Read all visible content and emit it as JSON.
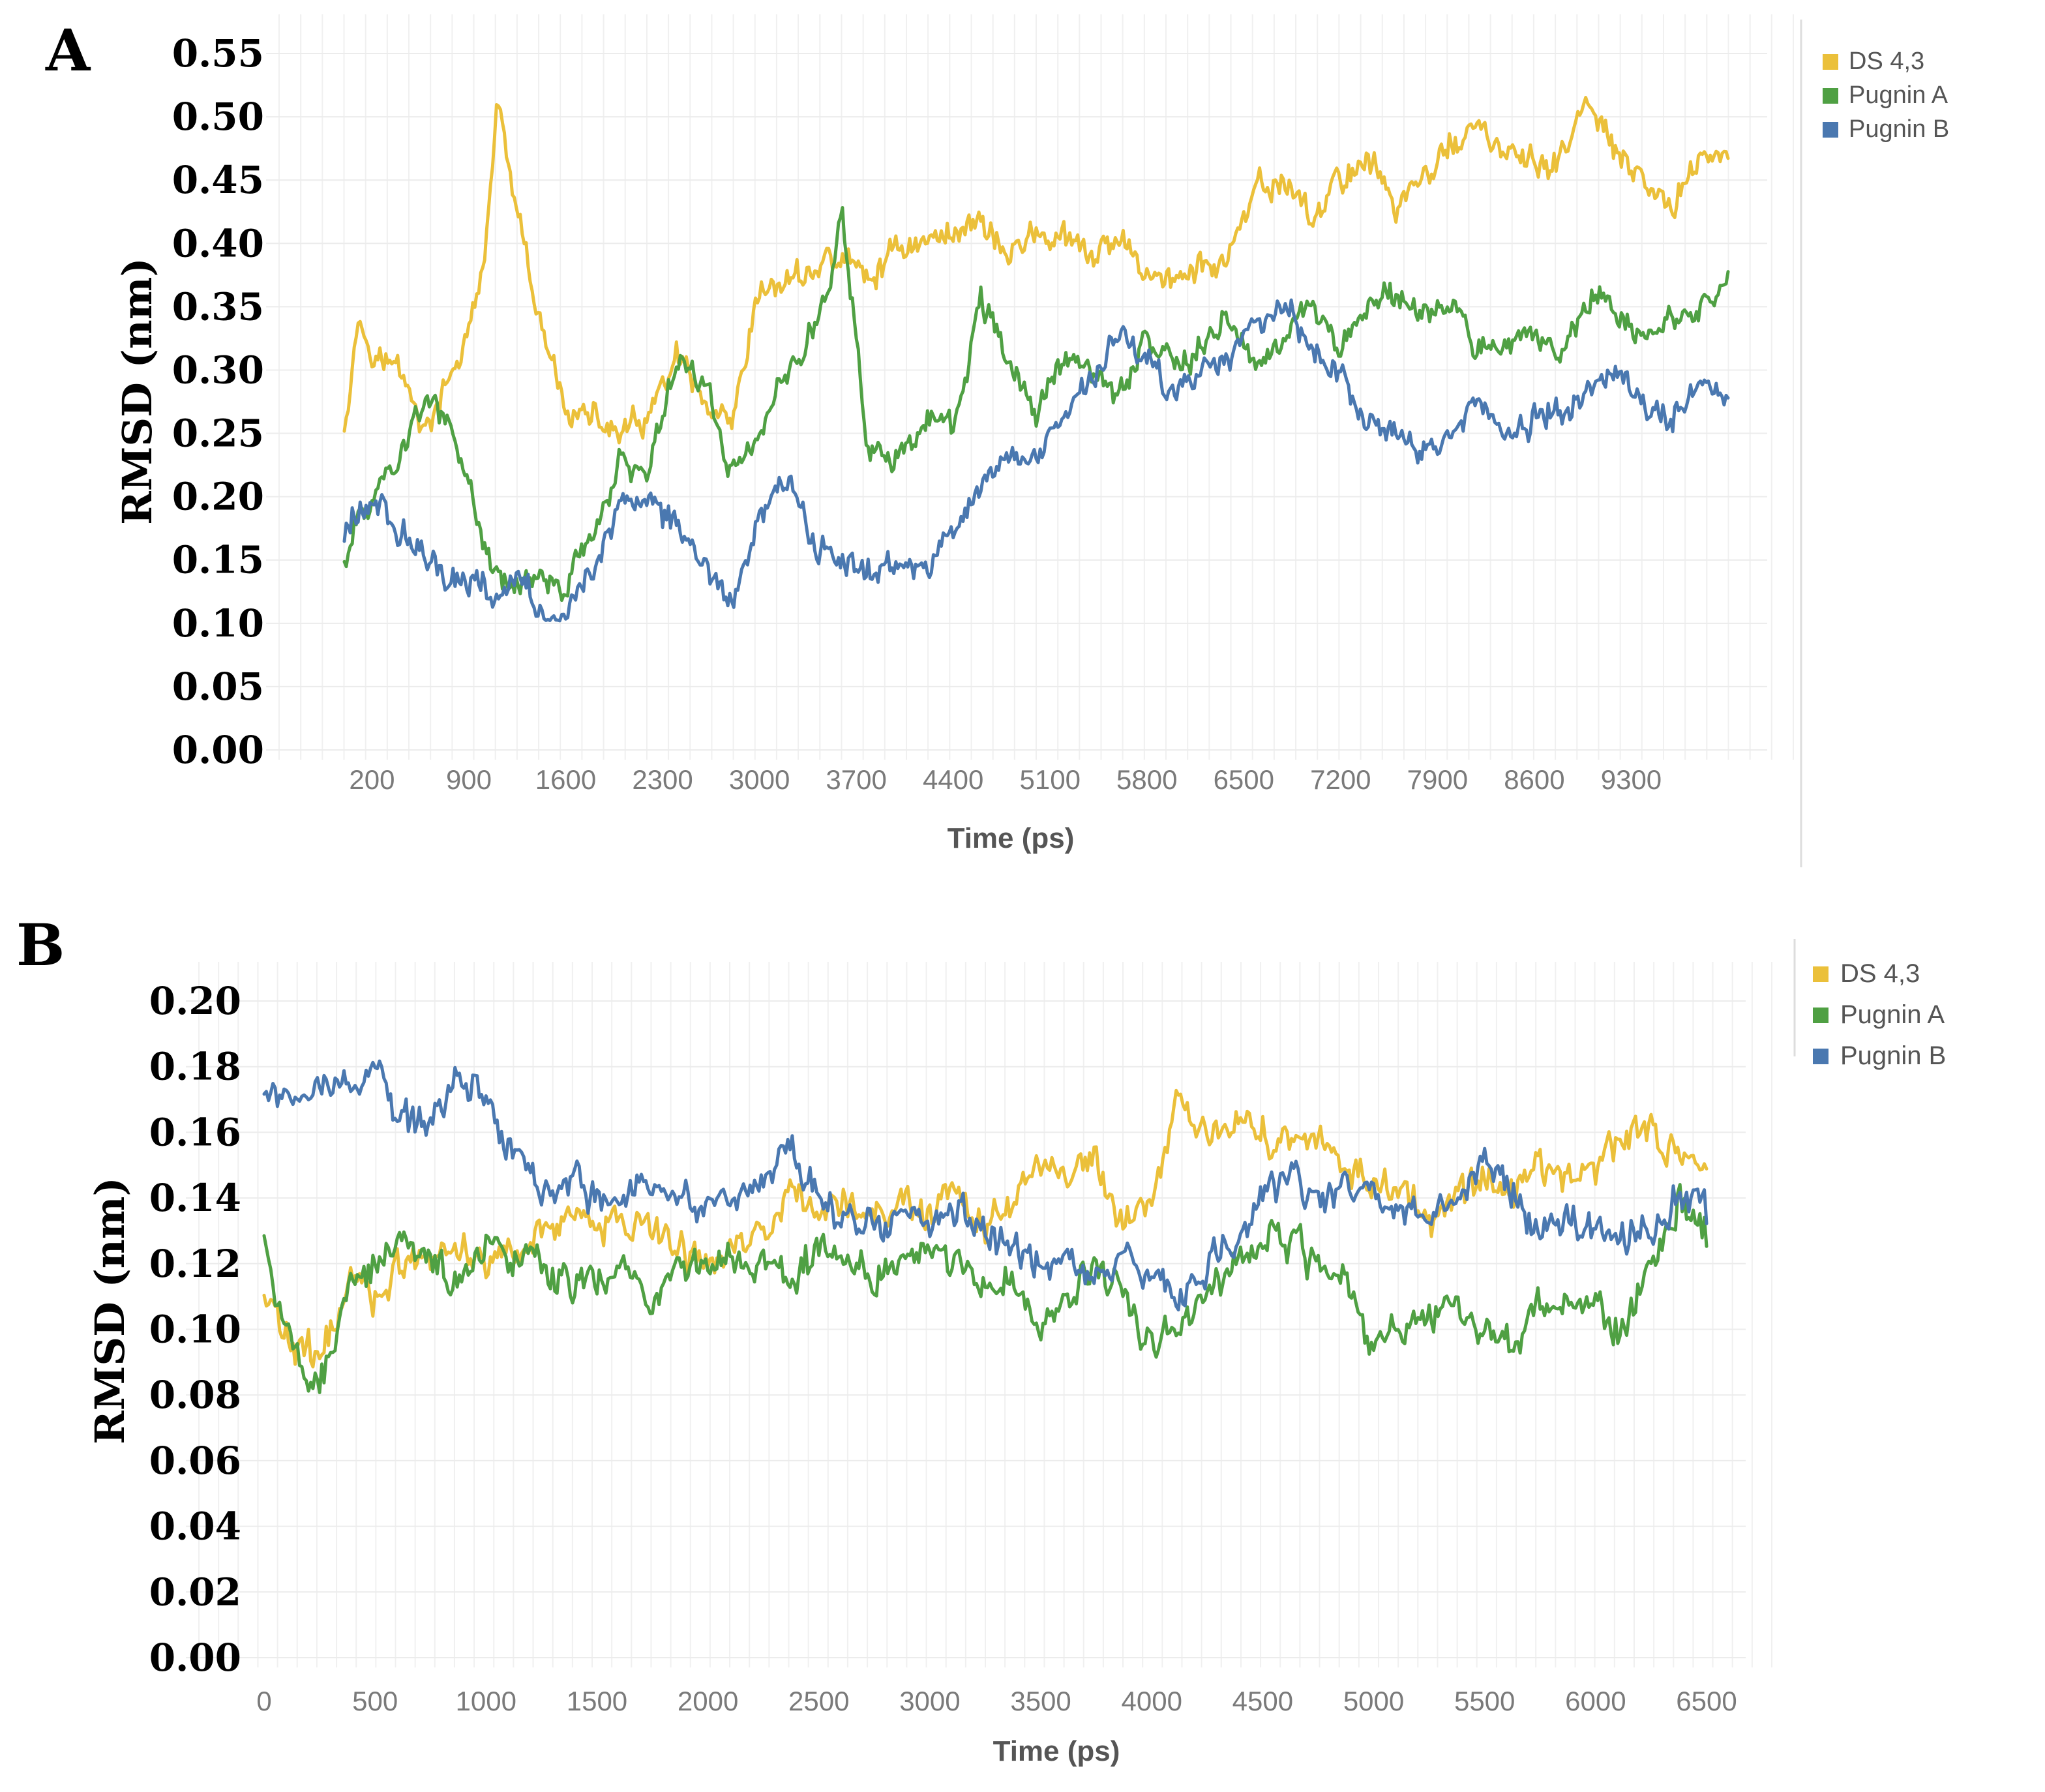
{
  "chart_data": [
    {
      "panel": "A",
      "type": "line",
      "title": "",
      "xlabel": "Time (ps)",
      "ylabel": "RMSD (nm)",
      "xlim": [
        0,
        10000
      ],
      "ylim": [
        0,
        0.55
      ],
      "yticks": [
        0.0,
        0.05,
        0.1,
        0.15,
        0.2,
        0.25,
        0.3,
        0.35,
        0.4,
        0.45,
        0.5,
        0.55
      ],
      "ytick_labels": [
        "0.00",
        "0.05",
        "0.10",
        "0.15",
        "0.20",
        "0.25",
        "0.30",
        "0.35",
        "0.40",
        "0.45",
        "0.50",
        "0.55"
      ],
      "xticks": [
        200,
        900,
        1600,
        2300,
        3000,
        3700,
        4400,
        5100,
        5800,
        6500,
        7200,
        7900,
        8600,
        9300
      ],
      "xtick_labels": [
        "200",
        "900",
        "1600",
        "2300",
        "3000",
        "3700",
        "4400",
        "5100",
        "5800",
        "6500",
        "7200",
        "7900",
        "8600",
        "9300"
      ],
      "grid": true,
      "legend_position": "top-right",
      "series": [
        {
          "name": "DS 4,3",
          "color": "#EBC03A",
          "x": [
            0,
            100,
            250,
            400,
            600,
            800,
            1000,
            1100,
            1250,
            1400,
            1600,
            1800,
            2000,
            2200,
            2400,
            2600,
            2800,
            3000,
            3200,
            3400,
            3600,
            3800,
            4000,
            4200,
            4400,
            4600,
            4800,
            5000,
            5200,
            5400,
            5600,
            5800,
            6000,
            6200,
            6400,
            6600,
            6800,
            7000,
            7200,
            7400,
            7600,
            7800,
            8000,
            8200,
            8400,
            8600,
            8800,
            9000,
            9200,
            9400,
            9600,
            9800,
            10000
          ],
          "y": [
            0.26,
            0.34,
            0.31,
            0.3,
            0.25,
            0.3,
            0.37,
            0.51,
            0.42,
            0.34,
            0.27,
            0.26,
            0.25,
            0.26,
            0.31,
            0.27,
            0.25,
            0.36,
            0.37,
            0.38,
            0.39,
            0.37,
            0.4,
            0.4,
            0.41,
            0.42,
            0.39,
            0.41,
            0.4,
            0.39,
            0.4,
            0.38,
            0.37,
            0.38,
            0.39,
            0.44,
            0.45,
            0.42,
            0.45,
            0.47,
            0.43,
            0.45,
            0.48,
            0.49,
            0.47,
            0.46,
            0.47,
            0.51,
            0.47,
            0.44,
            0.43,
            0.47,
            0.47
          ]
        },
        {
          "name": "Pugnin A",
          "color": "#4FA043",
          "x": [
            0,
            100,
            250,
            400,
            600,
            800,
            1000,
            1100,
            1250,
            1400,
            1600,
            1800,
            2000,
            2200,
            2400,
            2600,
            2800,
            3000,
            3200,
            3400,
            3600,
            3800,
            4000,
            4200,
            4400,
            4600,
            4800,
            5000,
            5200,
            5400,
            5600,
            5800,
            6000,
            6200,
            6400,
            6600,
            6800,
            7000,
            7200,
            7400,
            7600,
            7800,
            8000,
            8200,
            8400,
            8600,
            8800,
            9000,
            9200,
            9400,
            9600,
            9800,
            10000
          ],
          "y": [
            0.15,
            0.18,
            0.21,
            0.23,
            0.28,
            0.25,
            0.16,
            0.14,
            0.13,
            0.14,
            0.13,
            0.17,
            0.23,
            0.22,
            0.31,
            0.29,
            0.22,
            0.25,
            0.3,
            0.33,
            0.42,
            0.23,
            0.23,
            0.26,
            0.25,
            0.36,
            0.3,
            0.27,
            0.31,
            0.3,
            0.28,
            0.33,
            0.3,
            0.32,
            0.34,
            0.31,
            0.33,
            0.35,
            0.31,
            0.35,
            0.36,
            0.34,
            0.35,
            0.31,
            0.32,
            0.33,
            0.31,
            0.36,
            0.35,
            0.33,
            0.34,
            0.35,
            0.37
          ]
        },
        {
          "name": "Pugnin B",
          "color": "#4A78B0",
          "x": [
            0,
            100,
            250,
            400,
            600,
            800,
            1000,
            1100,
            1250,
            1400,
            1600,
            1800,
            2000,
            2200,
            2400,
            2600,
            2800,
            3000,
            3200,
            3400,
            3600,
            3800,
            4000,
            4200,
            4400,
            4600,
            4800,
            5000,
            5200,
            5400,
            5600,
            5800,
            6000,
            6200,
            6400,
            6600,
            6800,
            7000,
            7200,
            7400,
            7600,
            7800,
            8000,
            8200,
            8400,
            8600,
            8800,
            9000,
            9200,
            9400,
            9600,
            9800,
            10000
          ],
          "y": [
            0.17,
            0.19,
            0.2,
            0.17,
            0.15,
            0.13,
            0.14,
            0.12,
            0.13,
            0.12,
            0.11,
            0.14,
            0.2,
            0.19,
            0.18,
            0.14,
            0.12,
            0.18,
            0.22,
            0.16,
            0.15,
            0.14,
            0.15,
            0.14,
            0.17,
            0.21,
            0.23,
            0.24,
            0.26,
            0.29,
            0.33,
            0.31,
            0.28,
            0.3,
            0.31,
            0.34,
            0.35,
            0.32,
            0.3,
            0.26,
            0.25,
            0.24,
            0.25,
            0.28,
            0.24,
            0.26,
            0.27,
            0.29,
            0.3,
            0.27,
            0.26,
            0.29,
            0.27
          ]
        }
      ]
    },
    {
      "panel": "B",
      "type": "line",
      "title": "",
      "xlabel": "Time (ps)",
      "ylabel": "RMSD (nm)",
      "xlim": [
        0,
        6500
      ],
      "ylim": [
        0,
        0.2
      ],
      "yticks": [
        0.0,
        0.02,
        0.04,
        0.06,
        0.08,
        0.1,
        0.12,
        0.14,
        0.16,
        0.18,
        0.2
      ],
      "ytick_labels": [
        "0.00",
        "0.02",
        "0.04",
        "0.06",
        "0.08",
        "0.10",
        "0.12",
        "0.14",
        "0.16",
        "0.18",
        "0.20"
      ],
      "xticks": [
        0,
        500,
        1000,
        1500,
        2000,
        2500,
        3000,
        3500,
        4000,
        4500,
        5000,
        5500,
        6000,
        6500
      ],
      "xtick_labels": [
        "0",
        "500",
        "1000",
        "1500",
        "2000",
        "2500",
        "3000",
        "3500",
        "4000",
        "4500",
        "5000",
        "5500",
        "6000",
        "6500"
      ],
      "grid": true,
      "legend_position": "top-right",
      "series": [
        {
          "name": "DS 4,3",
          "color": "#EBC03A",
          "x": [
            0,
            125,
            250,
            375,
            500,
            625,
            750,
            875,
            1000,
            1125,
            1250,
            1375,
            1500,
            1625,
            1750,
            1875,
            2000,
            2125,
            2250,
            2375,
            2500,
            2625,
            2750,
            2875,
            3000,
            3125,
            3250,
            3375,
            3500,
            3625,
            3750,
            3875,
            4000,
            4125,
            4250,
            4375,
            4500,
            4625,
            4750,
            4875,
            5000,
            5125,
            5250,
            5375,
            5500,
            5625,
            5750,
            5875,
            6000,
            6125,
            6250,
            6375,
            6500
          ],
          "y": [
            0.11,
            0.095,
            0.09,
            0.115,
            0.11,
            0.12,
            0.12,
            0.125,
            0.12,
            0.125,
            0.13,
            0.135,
            0.13,
            0.135,
            0.13,
            0.125,
            0.12,
            0.125,
            0.13,
            0.14,
            0.135,
            0.14,
            0.135,
            0.14,
            0.135,
            0.14,
            0.13,
            0.14,
            0.15,
            0.145,
            0.15,
            0.13,
            0.14,
            0.17,
            0.16,
            0.165,
            0.16,
            0.155,
            0.155,
            0.15,
            0.145,
            0.14,
            0.135,
            0.14,
            0.15,
            0.14,
            0.15,
            0.145,
            0.15,
            0.16,
            0.16,
            0.155,
            0.145
          ]
        },
        {
          "name": "Pugnin A",
          "color": "#4FA043",
          "x": [
            0,
            125,
            250,
            375,
            500,
            625,
            750,
            875,
            1000,
            1125,
            1250,
            1375,
            1500,
            1625,
            1750,
            1875,
            2000,
            2125,
            2250,
            2375,
            2500,
            2625,
            2750,
            2875,
            3000,
            3125,
            3250,
            3375,
            3500,
            3625,
            3750,
            3875,
            4000,
            4125,
            4250,
            4375,
            4500,
            4625,
            4750,
            4875,
            5000,
            5125,
            5250,
            5375,
            5500,
            5625,
            5750,
            5875,
            6000,
            6125,
            6250,
            6375,
            6500
          ],
          "y": [
            0.13,
            0.09,
            0.085,
            0.11,
            0.12,
            0.13,
            0.12,
            0.115,
            0.125,
            0.12,
            0.12,
            0.115,
            0.115,
            0.12,
            0.11,
            0.115,
            0.12,
            0.125,
            0.12,
            0.115,
            0.125,
            0.12,
            0.115,
            0.12,
            0.125,
            0.12,
            0.11,
            0.115,
            0.1,
            0.11,
            0.12,
            0.11,
            0.095,
            0.1,
            0.11,
            0.12,
            0.13,
            0.125,
            0.12,
            0.115,
            0.095,
            0.1,
            0.105,
            0.11,
            0.1,
            0.095,
            0.105,
            0.11,
            0.105,
            0.1,
            0.12,
            0.14,
            0.13
          ]
        },
        {
          "name": "Pugnin B",
          "color": "#4A78B0",
          "x": [
            0,
            125,
            250,
            375,
            500,
            625,
            750,
            875,
            1000,
            1125,
            1250,
            1375,
            1500,
            1625,
            1750,
            1875,
            2000,
            2125,
            2250,
            2375,
            2500,
            2625,
            2750,
            2875,
            3000,
            3125,
            3250,
            3375,
            3500,
            3625,
            3750,
            3875,
            4000,
            4125,
            4250,
            4375,
            4500,
            4625,
            4750,
            4875,
            5000,
            5125,
            5250,
            5375,
            5500,
            5625,
            5750,
            5875,
            6000,
            6125,
            6250,
            6375,
            6500
          ],
          "y": [
            0.175,
            0.17,
            0.175,
            0.18,
            0.175,
            0.165,
            0.16,
            0.18,
            0.17,
            0.155,
            0.145,
            0.145,
            0.14,
            0.14,
            0.145,
            0.14,
            0.135,
            0.14,
            0.145,
            0.155,
            0.14,
            0.135,
            0.13,
            0.135,
            0.13,
            0.135,
            0.13,
            0.125,
            0.12,
            0.12,
            0.115,
            0.12,
            0.115,
            0.11,
            0.12,
            0.125,
            0.14,
            0.145,
            0.14,
            0.145,
            0.14,
            0.135,
            0.135,
            0.14,
            0.15,
            0.14,
            0.13,
            0.135,
            0.13,
            0.125,
            0.13,
            0.14,
            0.135
          ]
        }
      ]
    }
  ]
}
